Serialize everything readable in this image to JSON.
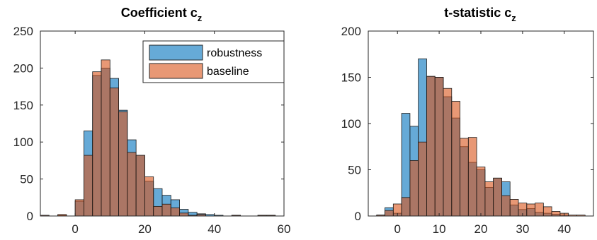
{
  "colors": {
    "robustness": "#0072BD",
    "baseline": "#D95319",
    "axis": "#262626"
  },
  "chart_data": [
    {
      "type": "bar",
      "title": "Coefficient c",
      "title_subscript": "z",
      "xlim": [
        -10,
        60
      ],
      "ylim": [
        0,
        250
      ],
      "xticks": [
        0,
        20,
        40,
        60
      ],
      "yticks": [
        0,
        50,
        100,
        150,
        200,
        250
      ],
      "bin_width": 2.5,
      "bin_start": -10,
      "legend": {
        "placement": "top-right",
        "entries": [
          "robustness",
          "baseline"
        ]
      },
      "series": [
        {
          "name": "robustness",
          "values": [
            0,
            0,
            1,
            0,
            20,
            115,
            190,
            200,
            186,
            143,
            103,
            82,
            47,
            37,
            28,
            22,
            9,
            5,
            3,
            2,
            1,
            0,
            1,
            0,
            0,
            1,
            1,
            0
          ]
        },
        {
          "name": "baseline",
          "values": [
            1,
            0,
            2,
            0,
            22,
            82,
            195,
            211,
            173,
            141,
            86,
            82,
            53,
            13,
            16,
            11,
            4,
            1,
            2,
            0,
            0,
            0,
            1,
            0,
            0,
            1,
            1,
            0
          ]
        }
      ]
    },
    {
      "type": "bar",
      "title": "t-statistic c",
      "title_subscript": "z",
      "xlim": [
        -7,
        47
      ],
      "ylim": [
        0,
        200
      ],
      "xticks": [
        0,
        10,
        20,
        30,
        40
      ],
      "yticks": [
        0,
        50,
        100,
        150,
        200
      ],
      "bin_width": 2,
      "bin_start": -5,
      "series": [
        {
          "name": "robustness",
          "values": [
            1,
            9,
            3,
            111,
            97,
            170,
            151,
            150,
            129,
            106,
            75,
            58,
            50,
            31,
            41,
            37,
            12,
            7,
            8,
            4,
            3,
            2,
            1,
            0,
            0,
            0
          ]
        },
        {
          "name": "baseline",
          "values": [
            1,
            6,
            13,
            20,
            60,
            80,
            151,
            150,
            138,
            124,
            84,
            85,
            53,
            37,
            41,
            22,
            18,
            14,
            13,
            14,
            10,
            5,
            3,
            1,
            1,
            0
          ]
        }
      ]
    }
  ]
}
